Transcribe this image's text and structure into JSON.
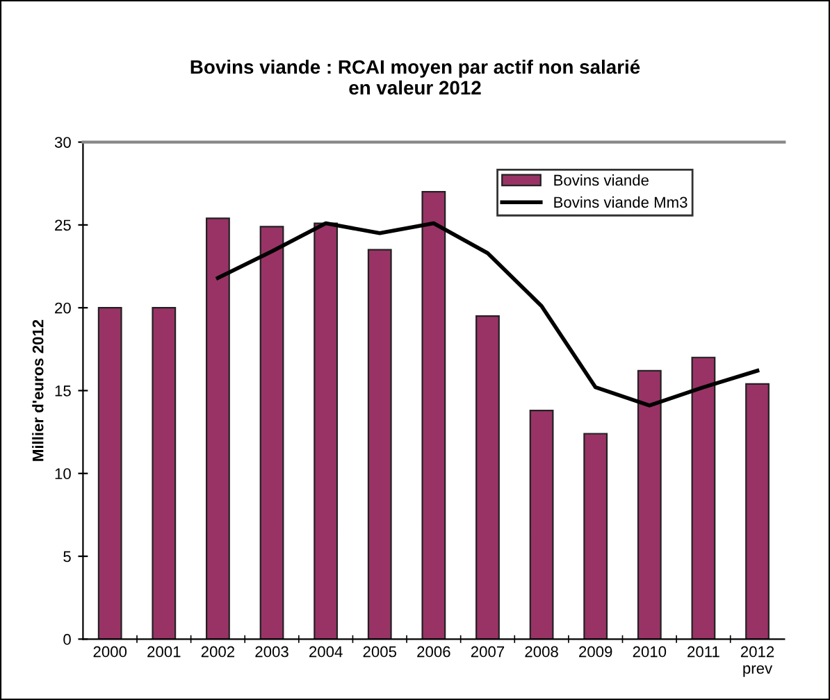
{
  "chart_data": {
    "type": "bar",
    "title": "Bovins viande : RCAI moyen par actif non salarié\nen valeur 2012",
    "ylabel": "Millier d'euros 2012",
    "categories": [
      "2000",
      "2001",
      "2002",
      "2003",
      "2004",
      "2005",
      "2006",
      "2007",
      "2008",
      "2009",
      "2010",
      "2011",
      "2012\nprev"
    ],
    "series": [
      {
        "name": "Bovins viande",
        "color": "#993366",
        "values": [
          20.0,
          20.0,
          25.4,
          24.9,
          25.1,
          23.5,
          27.0,
          19.5,
          13.8,
          12.4,
          16.2,
          17.0,
          15.4
        ]
      },
      {
        "name": "Bovins viande Mm3",
        "type": "line",
        "color": "#000000",
        "values": [
          null,
          null,
          21.8,
          23.4,
          25.1,
          24.5,
          25.1,
          23.3,
          20.1,
          15.2,
          14.1,
          15.2,
          16.2
        ]
      }
    ],
    "ylim": [
      0,
      30
    ],
    "yticks": [
      0,
      5,
      10,
      15,
      20,
      25,
      30
    ],
    "grid": false,
    "legend": "top right"
  }
}
